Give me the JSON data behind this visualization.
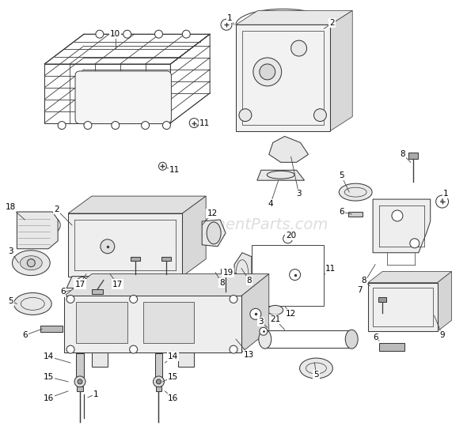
{
  "bg_color": "#ffffff",
  "line_color": "#3a3a3a",
  "text_color": "#000000",
  "watermark": "eReplacementParts.com",
  "watermark_color": "#c8c8c8",
  "fig_width": 5.9,
  "fig_height": 5.39,
  "dpi": 100,
  "lw": 0.75,
  "fs": 7.5
}
